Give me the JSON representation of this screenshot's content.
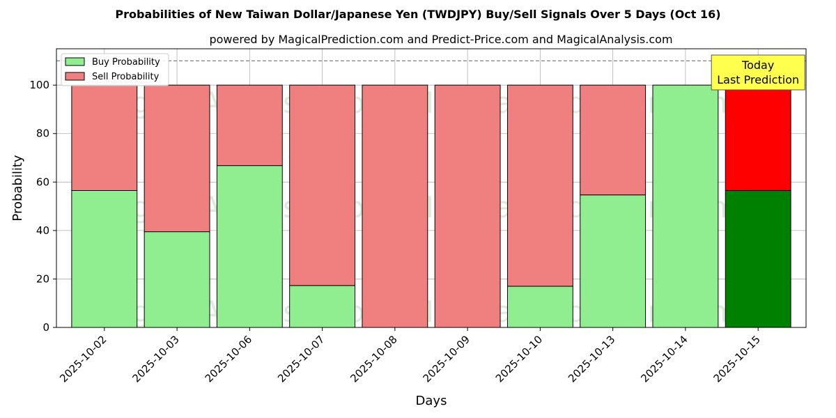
{
  "chart_data": {
    "type": "bar",
    "stacked": true,
    "title": "Probabilities of New Taiwan Dollar/Japanese Yen (TWDJPY) Buy/Sell Signals Over 5 Days (Oct 16)",
    "subtitle": "powered by MagicalPrediction.com and Predict-Price.com and MagicalAnalysis.com",
    "xlabel": "Days",
    "ylabel": "Probability",
    "ylim": [
      0,
      115
    ],
    "yticks": [
      0,
      20,
      40,
      60,
      80,
      100
    ],
    "reference_line": 110,
    "grid": true,
    "legend_position": "top-left",
    "categories": [
      "2025-10-02",
      "2025-10-03",
      "2025-10-06",
      "2025-10-07",
      "2025-10-08",
      "2025-10-09",
      "2025-10-10",
      "2025-10-13",
      "2025-10-14",
      "2025-10-15"
    ],
    "series": [
      {
        "name": "Buy Probability",
        "values": [
          56.5,
          39.5,
          66.8,
          17.3,
          0,
          0,
          17.0,
          54.7,
          100,
          56.5
        ],
        "color": "#90ee90",
        "highlight_color": "#008000"
      },
      {
        "name": "Sell Probability",
        "values": [
          43.5,
          60.5,
          33.2,
          82.7,
          100,
          100,
          83.0,
          45.3,
          0,
          43.5
        ],
        "color": "#f08080",
        "highlight_color": "#ff0000"
      }
    ],
    "highlight_index": 9,
    "annotation": {
      "lines": [
        "Today",
        "Last Prediction"
      ],
      "color": "#ffff4d"
    },
    "watermarks": [
      "MagicalAnalysis.com",
      "MagicalPrediction.com"
    ]
  }
}
